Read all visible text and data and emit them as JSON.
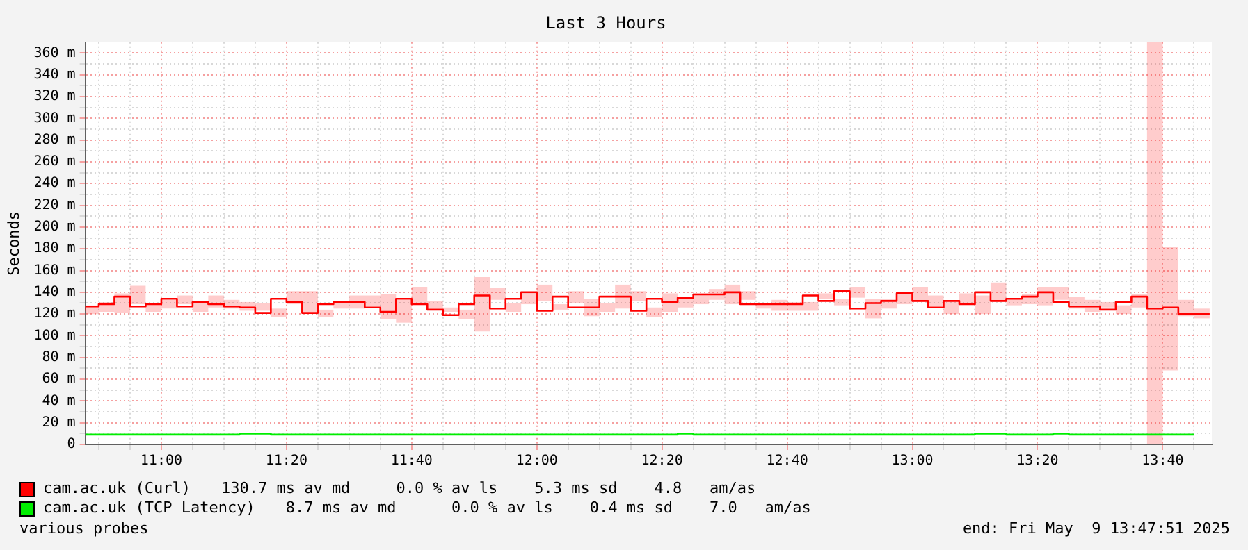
{
  "chart_data": {
    "type": "step",
    "title": "Last 3 Hours",
    "ylabel": "Seconds",
    "x": [
      10.7975,
      10.8333,
      10.875,
      10.9167,
      10.9583,
      11.0,
      11.0417,
      11.0833,
      11.125,
      11.1667,
      11.2083,
      11.25,
      11.2917,
      11.3333,
      11.375,
      11.4167,
      11.4583,
      11.5,
      11.5417,
      11.5833,
      11.625,
      11.6667,
      11.7083,
      11.75,
      11.7917,
      11.8333,
      11.875,
      11.9167,
      11.9583,
      12.0,
      12.0417,
      12.0833,
      12.125,
      12.1667,
      12.2083,
      12.25,
      12.2917,
      12.3333,
      12.375,
      12.4167,
      12.4583,
      12.5,
      12.5417,
      12.5833,
      12.625,
      12.6667,
      12.7083,
      12.75,
      12.7917,
      12.8333,
      12.875,
      12.9167,
      12.9583,
      13.0,
      13.0417,
      13.0833,
      13.125,
      13.1667,
      13.2083,
      13.25,
      13.2917,
      13.3333,
      13.375,
      13.4167,
      13.4583,
      13.5,
      13.5417,
      13.5833,
      13.625,
      13.6667,
      13.7083,
      13.75,
      13.7917
    ],
    "series": [
      {
        "name": "cam.ac.uk (Curl)",
        "color": "#ff0000",
        "values": [
          123,
          127,
          129,
          136,
          127,
          129,
          134,
          127,
          131,
          129,
          127,
          126,
          121,
          134,
          131,
          121,
          129,
          131,
          131,
          126,
          122,
          134,
          129,
          124,
          119,
          129,
          137,
          125,
          134,
          140,
          123,
          136,
          126,
          126,
          136,
          136,
          123,
          134,
          131,
          135,
          138,
          138,
          140,
          129,
          129,
          129,
          129,
          137,
          132,
          141,
          125,
          130,
          132,
          139,
          132,
          126,
          132,
          129,
          140,
          132,
          134,
          136,
          140,
          131,
          127,
          127,
          124,
          131,
          136,
          125,
          126,
          120,
          120
        ],
        "upper": [
          128,
          131,
          139,
          146,
          130,
          133,
          137,
          132,
          137,
          133,
          131,
          130,
          125,
          141,
          141,
          124,
          130,
          137,
          137,
          138,
          133,
          145,
          132,
          126,
          124,
          154,
          144,
          130,
          138,
          147,
          129,
          141,
          134,
          130,
          147,
          141,
          126,
          139,
          136,
          139,
          143,
          147,
          141,
          130,
          133,
          131,
          131,
          139,
          134,
          145,
          134,
          134,
          138,
          145,
          137,
          132,
          139,
          137,
          149,
          134,
          138,
          145,
          145,
          136,
          133,
          131,
          128,
          138,
          370,
          182,
          133,
          125,
          125
        ],
        "lower": [
          120,
          122,
          121,
          129,
          122,
          125,
          129,
          122,
          126,
          125,
          123,
          123,
          117,
          129,
          122,
          117,
          125,
          125,
          127,
          115,
          112,
          129,
          125,
          122,
          115,
          104,
          133,
          122,
          129,
          132,
          124,
          130,
          118,
          122,
          125,
          132,
          117,
          122,
          126,
          129,
          133,
          129,
          133,
          125,
          123,
          123,
          123,
          134,
          128,
          135,
          116,
          125,
          129,
          131,
          127,
          120,
          129,
          120,
          131,
          128,
          129,
          128,
          133,
          125,
          122,
          126,
          120,
          126,
          0,
          68,
          118,
          116,
          116
        ]
      },
      {
        "name": "cam.ac.uk (TCP Latency)",
        "color": "#00ee00",
        "values": [
          9,
          9,
          9,
          9,
          9,
          9,
          9,
          9,
          9,
          9,
          9,
          10,
          10,
          9,
          9,
          9,
          9,
          9,
          9,
          9,
          9,
          9,
          9,
          9,
          9,
          9,
          9,
          9,
          9,
          9,
          9,
          9,
          9,
          9,
          9,
          9,
          9,
          9,
          9,
          10,
          9,
          9,
          9,
          9,
          9,
          9,
          9,
          9,
          9,
          9,
          9,
          9,
          9,
          9,
          9,
          9,
          9,
          9,
          10,
          10,
          9,
          9,
          9,
          10,
          9,
          9,
          9,
          9,
          9,
          9,
          9,
          9,
          null
        ]
      }
    ],
    "xlim": [
      10.7975,
      13.7975
    ],
    "xticks": [
      {
        "value": 10.8333,
        "label": null
      },
      {
        "value": 10.9167,
        "label": null
      },
      {
        "value": 11.0,
        "label": "11:00"
      },
      {
        "value": 11.0833,
        "label": null
      },
      {
        "value": 11.1667,
        "label": null
      },
      {
        "value": 11.25,
        "label": null
      },
      {
        "value": 11.3333,
        "label": "11:20"
      },
      {
        "value": 11.4167,
        "label": null
      },
      {
        "value": 11.5,
        "label": null
      },
      {
        "value": 11.5833,
        "label": null
      },
      {
        "value": 11.6667,
        "label": "11:40"
      },
      {
        "value": 11.75,
        "label": null
      },
      {
        "value": 11.8333,
        "label": null
      },
      {
        "value": 11.9167,
        "label": null
      },
      {
        "value": 12.0,
        "label": "12:00"
      },
      {
        "value": 12.0833,
        "label": null
      },
      {
        "value": 12.1667,
        "label": null
      },
      {
        "value": 12.25,
        "label": null
      },
      {
        "value": 12.3333,
        "label": "12:20"
      },
      {
        "value": 12.4167,
        "label": null
      },
      {
        "value": 12.5,
        "label": null
      },
      {
        "value": 12.5833,
        "label": null
      },
      {
        "value": 12.6667,
        "label": "12:40"
      },
      {
        "value": 12.75,
        "label": null
      },
      {
        "value": 12.8333,
        "label": null
      },
      {
        "value": 12.9167,
        "label": null
      },
      {
        "value": 13.0,
        "label": "13:00"
      },
      {
        "value": 13.0833,
        "label": null
      },
      {
        "value": 13.1667,
        "label": null
      },
      {
        "value": 13.25,
        "label": null
      },
      {
        "value": 13.3333,
        "label": "13:20"
      },
      {
        "value": 13.4167,
        "label": null
      },
      {
        "value": 13.5,
        "label": null
      },
      {
        "value": 13.5833,
        "label": null
      },
      {
        "value": 13.6667,
        "label": "13:40"
      },
      {
        "value": 13.75,
        "label": null
      }
    ],
    "ylim": [
      0,
      370
    ],
    "yticks": [
      0,
      {
        "value": 10,
        "label": null
      },
      {
        "value": 20,
        "label": "20 m"
      },
      {
        "value": 30,
        "label": null
      },
      {
        "value": 40,
        "label": "40 m"
      },
      {
        "value": 50,
        "label": null
      },
      {
        "value": 60,
        "label": "60 m"
      },
      {
        "value": 70,
        "label": null
      },
      {
        "value": 80,
        "label": "80 m"
      },
      {
        "value": 90,
        "label": null
      },
      {
        "value": 100,
        "label": "100 m"
      },
      {
        "value": 110,
        "label": null
      },
      {
        "value": 120,
        "label": "120 m"
      },
      {
        "value": 130,
        "label": null
      },
      {
        "value": 140,
        "label": "140 m"
      },
      {
        "value": 150,
        "label": null
      },
      {
        "value": 160,
        "label": "160 m"
      },
      {
        "value": 170,
        "label": null
      },
      {
        "value": 180,
        "label": "180 m"
      },
      {
        "value": 190,
        "label": null
      },
      {
        "value": 200,
        "label": "200 m"
      },
      {
        "value": 210,
        "label": null
      },
      {
        "value": 220,
        "label": "220 m"
      },
      {
        "value": 230,
        "label": null
      },
      {
        "value": 240,
        "label": "240 m"
      },
      {
        "value": 250,
        "label": null
      },
      {
        "value": 260,
        "label": "260 m"
      },
      {
        "value": 270,
        "label": null
      },
      {
        "value": 280,
        "label": "280 m"
      },
      {
        "value": 290,
        "label": null
      },
      {
        "value": 300,
        "label": "300 m"
      },
      {
        "value": 310,
        "label": null
      },
      {
        "value": 320,
        "label": "320 m"
      },
      {
        "value": 330,
        "label": null
      },
      {
        "value": 340,
        "label": "340 m"
      },
      {
        "value": 350,
        "label": null
      },
      {
        "value": 360,
        "label": "360 m"
      }
    ],
    "grid": true,
    "legend": "bottom",
    "annotations": [
      "130.7 ms av md     0.0 % av ls    5.3 ms sd    4.8   am/as",
      "8.7 ms av md      0.0 % av ls    0.4 ms sd    7.0   am/as",
      "various probes",
      "end: Fri May  9 13:47:51 2025"
    ]
  }
}
